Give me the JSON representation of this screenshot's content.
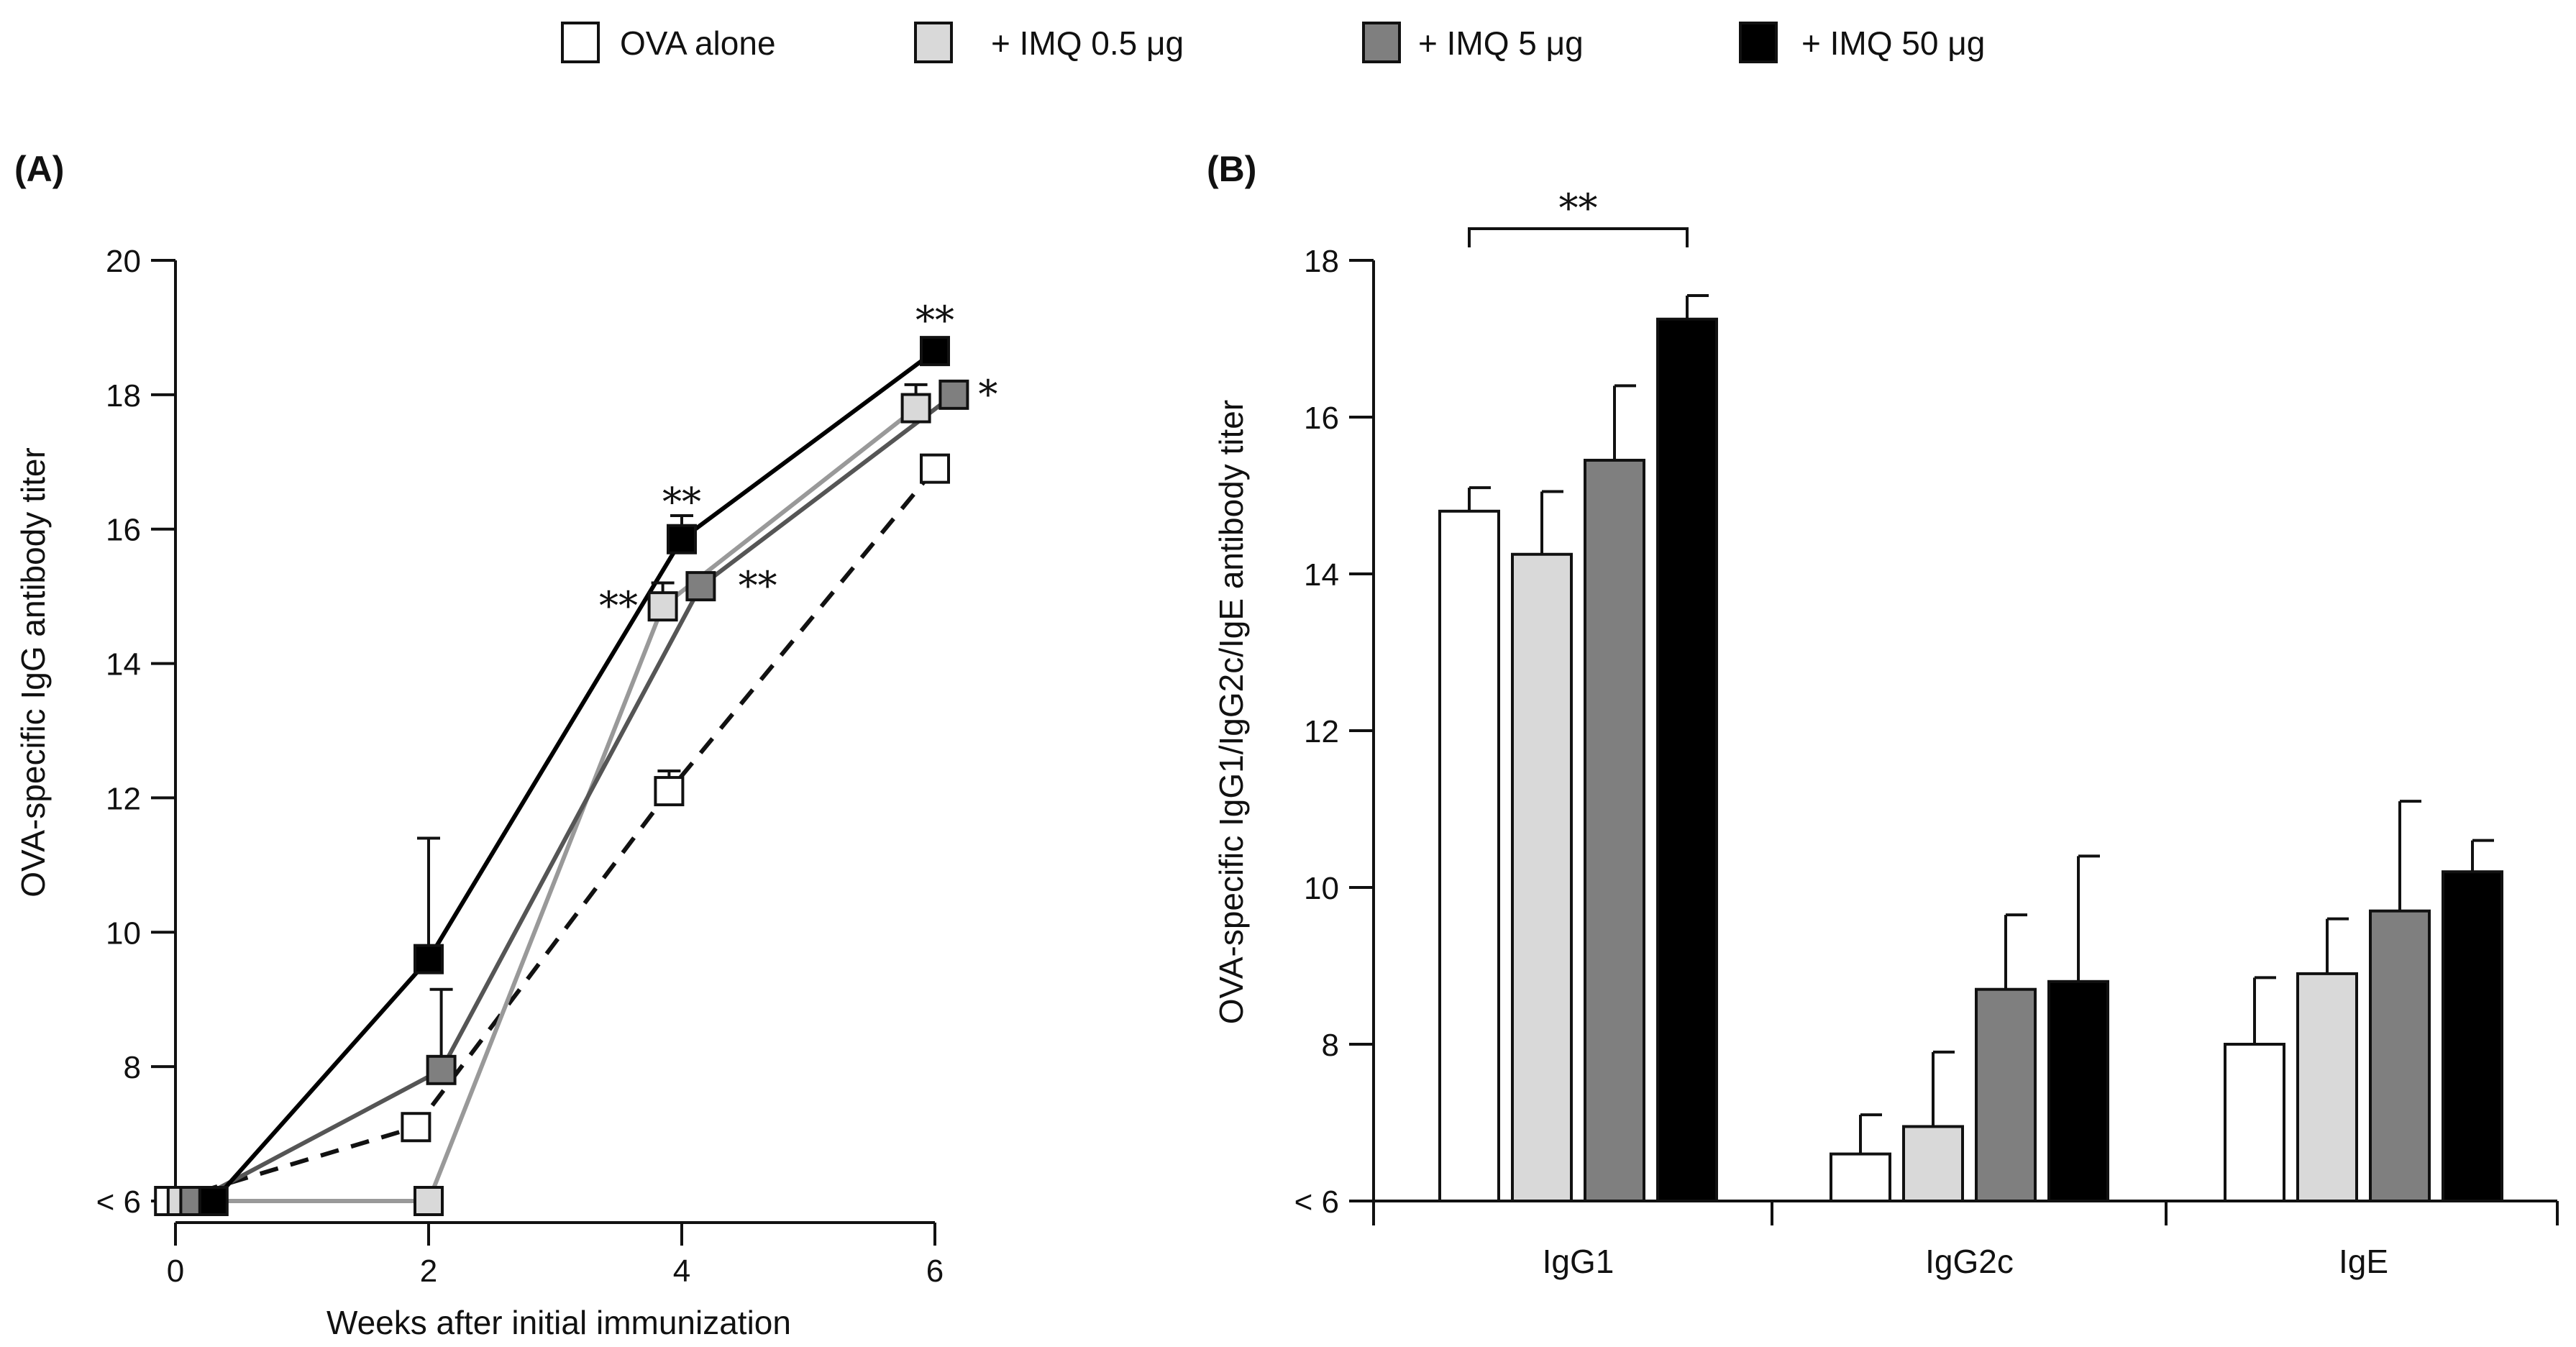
{
  "colors": {
    "ova": "#ffffff",
    "imq05": "#d9d9d9",
    "imq5": "#7f7f7f",
    "imq50": "#000000",
    "line_ova": "#111111",
    "line_imq05": "#999999",
    "line_imq5": "#555555",
    "line_imq50": "#000000"
  },
  "legend": [
    {
      "key": "ova",
      "label": "OVA alone"
    },
    {
      "key": "imq05",
      "label": "+ IMQ 0.5 μg"
    },
    {
      "key": "imq5",
      "label": "+ IMQ 5 μg"
    },
    {
      "key": "imq50",
      "label": "+ IMQ 50 μg"
    }
  ],
  "chart_data": [
    {
      "type": "line",
      "panel_label": "(A)",
      "xlabel": "Weeks after initial immunization",
      "ylabel": "OVA-specific IgG antibody titer",
      "xlim": [
        0,
        6
      ],
      "ylim": [
        6,
        20
      ],
      "x_ticks": [
        0,
        2,
        4,
        6
      ],
      "x_tick_labels": [
        "0",
        "2",
        "4",
        "6"
      ],
      "y_ticks": [
        6,
        8,
        10,
        12,
        14,
        16,
        18,
        20
      ],
      "y_tick_labels": [
        "< 6",
        "8",
        "10",
        "12",
        "14",
        "16",
        "18",
        "20"
      ],
      "series": [
        {
          "key": "ova",
          "name": "OVA alone",
          "dashed": true,
          "x": [
            0,
            2,
            4,
            6
          ],
          "offsets": [
            -0.05,
            -0.1,
            -0.1,
            0
          ],
          "values": [
            6,
            7.1,
            12.1,
            16.9
          ],
          "errors": [
            0,
            0,
            0.3,
            0
          ]
        },
        {
          "key": "imq05",
          "name": "+ IMQ 0.5 μg",
          "dashed": false,
          "x": [
            0,
            2,
            4,
            6
          ],
          "offsets": [
            0.05,
            0,
            -0.15,
            -0.15
          ],
          "values": [
            6,
            6,
            14.85,
            17.8
          ],
          "errors": [
            0,
            0,
            0.35,
            0.35
          ]
        },
        {
          "key": "imq5",
          "name": "+ IMQ 5 μg",
          "dashed": false,
          "x": [
            0,
            2,
            4,
            6
          ],
          "offsets": [
            0.15,
            0.1,
            0.15,
            0.15
          ],
          "values": [
            6,
            7.95,
            15.15,
            18.0
          ],
          "errors": [
            0,
            1.2,
            0,
            0
          ]
        },
        {
          "key": "imq50",
          "name": "+ IMQ 50 μg",
          "dashed": false,
          "x": [
            0,
            2,
            4,
            6
          ],
          "offsets": [
            0.3,
            0,
            0,
            0
          ],
          "values": [
            6,
            9.6,
            15.85,
            18.65
          ],
          "errors": [
            0,
            1.8,
            0.35,
            0
          ]
        }
      ],
      "annotations": [
        {
          "text": "**",
          "x": 4,
          "y": 16.4
        },
        {
          "text": "**",
          "x": 3.5,
          "y": 14.85
        },
        {
          "text": "**",
          "x": 4.6,
          "y": 15.15
        },
        {
          "text": "**",
          "x": 6,
          "y": 19.1
        },
        {
          "text": "*",
          "x": 6.42,
          "y": 18.0
        }
      ]
    },
    {
      "type": "bar",
      "panel_label": "(B)",
      "xlabel": "",
      "ylabel": "OVA-specific IgG1/IgG2c/IgE antibody titer",
      "categories": [
        "IgG1",
        "IgG2c",
        "IgE"
      ],
      "ylim": [
        6,
        18
      ],
      "y_ticks": [
        6,
        8,
        10,
        12,
        14,
        16,
        18
      ],
      "y_tick_labels": [
        "< 6",
        "8",
        "10",
        "12",
        "14",
        "16",
        "18"
      ],
      "series": [
        {
          "key": "ova",
          "name": "OVA alone",
          "values": [
            14.8,
            6.6,
            8.0
          ],
          "errors": [
            0.3,
            0.5,
            0.85
          ]
        },
        {
          "key": "imq05",
          "name": "+ IMQ 0.5 μg",
          "values": [
            14.25,
            6.95,
            8.9
          ],
          "errors": [
            0.8,
            0.95,
            0.7
          ]
        },
        {
          "key": "imq5",
          "name": "+ IMQ 5 μg",
          "values": [
            15.45,
            8.7,
            9.7
          ],
          "errors": [
            0.95,
            0.95,
            1.4
          ]
        },
        {
          "key": "imq50",
          "name": "+ IMQ 50 μg",
          "values": [
            17.25,
            8.8,
            10.2
          ],
          "errors": [
            0.3,
            1.6,
            0.4
          ]
        }
      ],
      "significance": {
        "text": "**",
        "category": "IgG1",
        "from_series": 0,
        "to_series": 3
      }
    }
  ]
}
